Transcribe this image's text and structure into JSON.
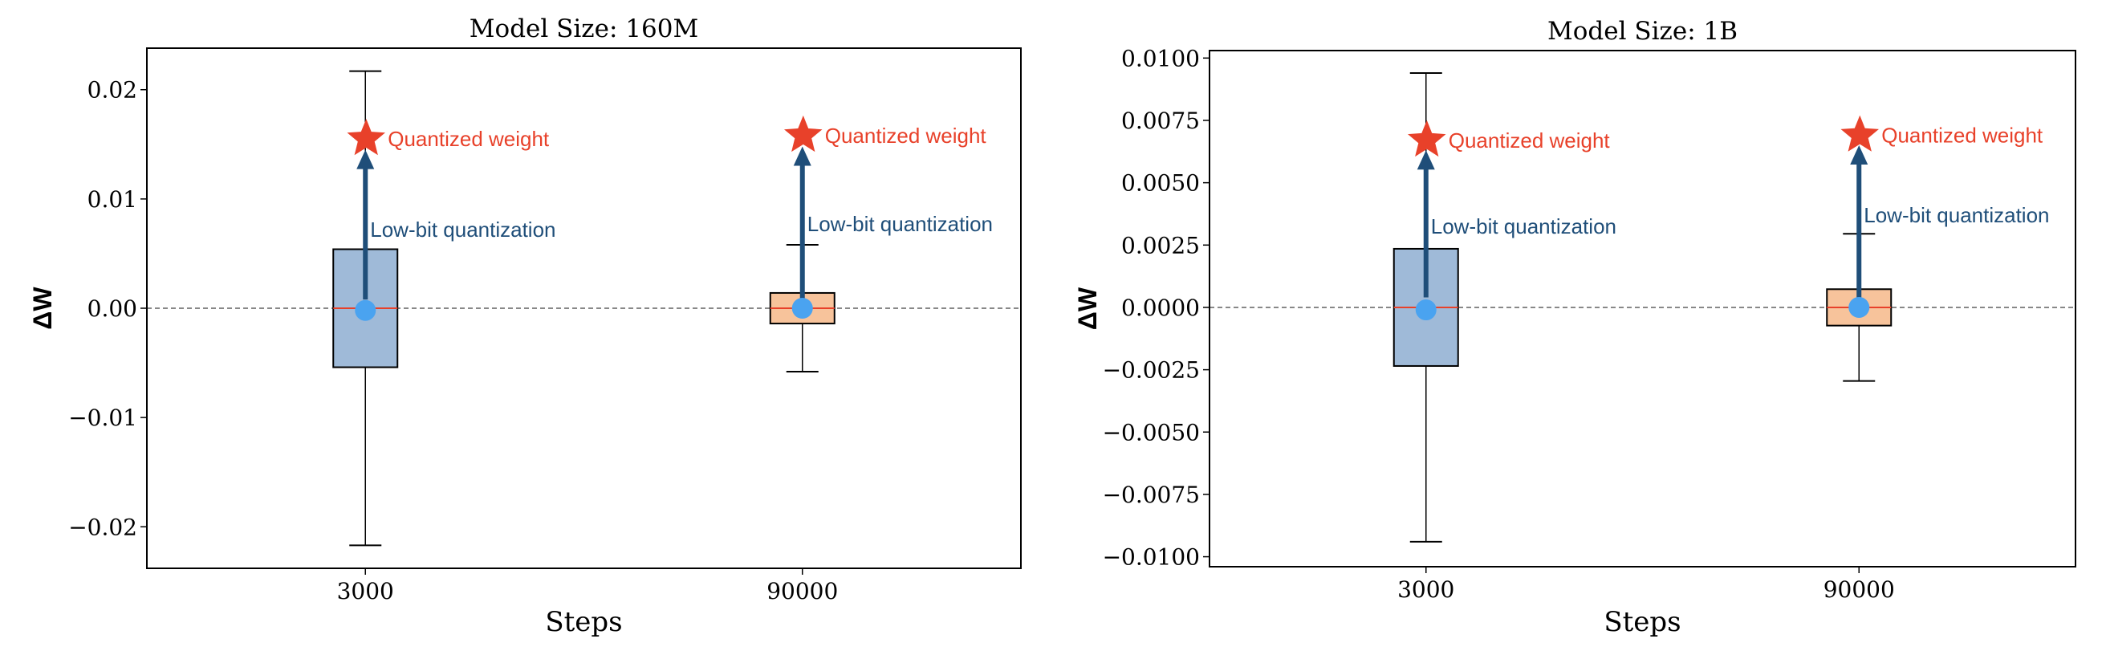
{
  "chart_data": [
    {
      "type": "box",
      "title": "Model Size: 160M",
      "xlabel": "Steps",
      "ylabel": "ΔW",
      "ylim": [
        -0.0238,
        0.0238
      ],
      "yticks": [
        -0.02,
        -0.01,
        0.0,
        0.01,
        0.02
      ],
      "ytick_labels": [
        "−0.02",
        "−0.01",
        "0.00",
        "0.01",
        "0.02"
      ],
      "categories": [
        "3000",
        "90000"
      ],
      "reference_line": 0,
      "boxes": [
        {
          "category": "3000",
          "whislo": -0.0217,
          "q1": -0.0054,
          "median": 0.0,
          "q3": 0.0054,
          "whishi": 0.0217,
          "mean": -0.0002,
          "color": "#9fbad8",
          "quantized": 0.0155,
          "arrow_from": 0.0008,
          "arrow_to": 0.0145,
          "arrow_label_y": 0.0072
        },
        {
          "category": "90000",
          "whislo": -0.0058,
          "q1": -0.0014,
          "median": 0.0,
          "q3": 0.0014,
          "whishi": 0.0058,
          "mean": 0.0,
          "color": "#f7c39b",
          "quantized": 0.0158,
          "arrow_from": 0.0008,
          "arrow_to": 0.0148,
          "arrow_label_y": 0.0077
        }
      ],
      "annotations": {
        "star_label": "Quantized weight",
        "arrow_label": "Low-bit quantization"
      }
    },
    {
      "type": "box",
      "title": "Model Size: 1B",
      "xlabel": "Steps",
      "ylabel": "ΔW",
      "ylim": [
        -0.0104,
        0.0103
      ],
      "yticks": [
        -0.01,
        -0.0075,
        -0.005,
        -0.0025,
        0.0,
        0.0025,
        0.005,
        0.0075,
        0.01
      ],
      "ytick_labels": [
        "−0.0100",
        "−0.0075",
        "−0.0050",
        "−0.0025",
        "0.0000",
        "0.0025",
        "0.0050",
        "0.0075",
        "0.0100"
      ],
      "categories": [
        "3000",
        "90000"
      ],
      "reference_line": 0,
      "boxes": [
        {
          "category": "3000",
          "whislo": -0.0094,
          "q1": -0.00235,
          "median": 0.0,
          "q3": 0.00235,
          "whishi": 0.0094,
          "mean": -0.0001,
          "color": "#9fbad8",
          "quantized": 0.0067,
          "arrow_from": 0.0004,
          "arrow_to": 0.0063,
          "arrow_label_y": 0.00325
        },
        {
          "category": "90000",
          "whislo": -0.00295,
          "q1": -0.00073,
          "median": 0.0,
          "q3": 0.00073,
          "whishi": 0.00295,
          "mean": 0.0,
          "color": "#f7c39b",
          "quantized": 0.0069,
          "arrow_from": 0.0004,
          "arrow_to": 0.0065,
          "arrow_label_y": 0.0037
        }
      ],
      "annotations": {
        "star_label": "Quantized weight",
        "arrow_label": "Low-bit quantization"
      }
    }
  ],
  "colors": {
    "median": "#e8412a",
    "mean": "#4aa3f0",
    "star": "#e8412a",
    "arrow": "#1f4e79",
    "star_text": "#e8412a",
    "arrow_text": "#1f4e79"
  }
}
